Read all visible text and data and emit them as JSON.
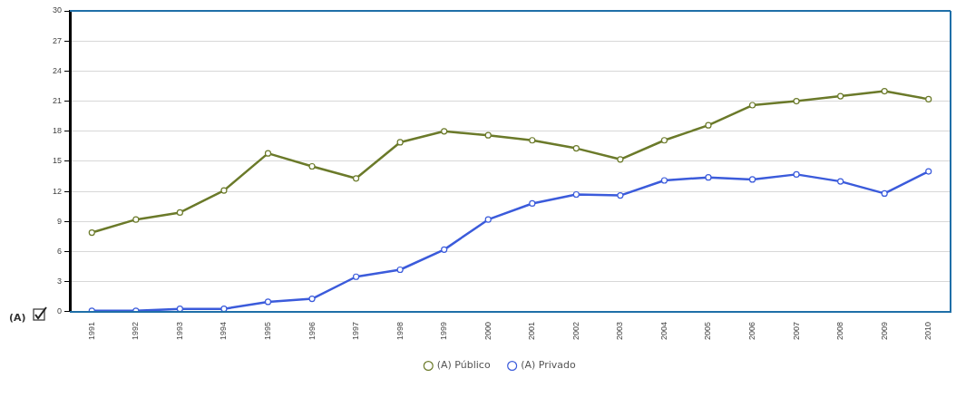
{
  "chart_data": {
    "type": "line",
    "categories": [
      "1991",
      "1992",
      "1993",
      "1994",
      "1995",
      "1996",
      "1997",
      "1998",
      "1999",
      "2000",
      "2001",
      "2002",
      "2003",
      "2004",
      "2005",
      "2006",
      "2007",
      "2008",
      "2009",
      "2010"
    ],
    "series": [
      {
        "name": "(A) Público",
        "color": "#6b7a2a",
        "values": [
          7.9,
          9.2,
          9.9,
          12.1,
          15.8,
          14.5,
          13.3,
          16.9,
          18.0,
          17.6,
          17.1,
          16.3,
          15.2,
          17.1,
          18.6,
          20.6,
          21.0,
          21.5,
          22.0,
          21.2
        ]
      },
      {
        "name": "(A) Privado",
        "color": "#3b5bdb",
        "values": [
          0.1,
          0.1,
          0.3,
          0.3,
          1.0,
          1.3,
          3.5,
          4.2,
          6.2,
          9.2,
          10.8,
          11.7,
          11.6,
          13.1,
          13.4,
          13.2,
          13.7,
          13.0,
          11.8,
          14.0
        ]
      }
    ],
    "ylim": [
      0,
      30
    ],
    "yticks": [
      0,
      3,
      6,
      9,
      12,
      15,
      18,
      21,
      24,
      27,
      30
    ],
    "grid": "y",
    "legend": "bottom",
    "marker": "circle",
    "line_style": "solid",
    "annotations": [
      "(A)"
    ]
  }
}
